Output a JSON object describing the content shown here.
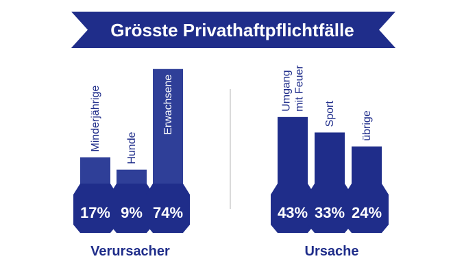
{
  "title": "Grösste Privathaftpflichtfälle",
  "colors": {
    "primary": "#1f2d8a",
    "secondary": "#2f3f98",
    "background": "#ffffff",
    "divider": "#b5b5b5",
    "text_on_bar": "#ffffff"
  },
  "chart_data": [
    {
      "type": "bar",
      "group_label": "Verursacher",
      "unit": "%",
      "categories": [
        [
          "Minderjährige"
        ],
        [
          "Hunde"
        ],
        [
          "Erwachsene"
        ]
      ],
      "values": [
        17,
        9,
        74
      ],
      "value_labels": [
        "17%",
        "9%",
        "74%"
      ]
    },
    {
      "type": "bar",
      "group_label": "Ursache",
      "unit": "%",
      "categories": [
        [
          "Umgang",
          "mit Feuer"
        ],
        [
          "Sport"
        ],
        [
          "übrige"
        ]
      ],
      "values": [
        43,
        33,
        24
      ],
      "value_labels": [
        "43%",
        "33%",
        "24%"
      ]
    }
  ]
}
